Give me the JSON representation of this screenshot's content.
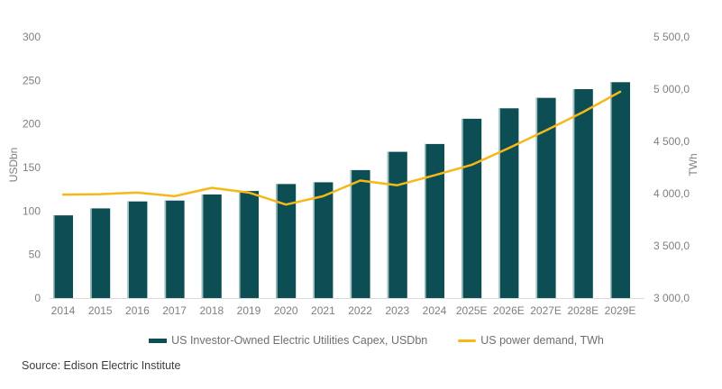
{
  "chart_data": {
    "type": "bar",
    "subtype": "bar-line-combo",
    "categories": [
      "2014",
      "2015",
      "2016",
      "2017",
      "2018",
      "2019",
      "2020",
      "2021",
      "2022",
      "2023",
      "2024",
      "2025E",
      "2026E",
      "2027E",
      "2028E",
      "2029E"
    ],
    "series": [
      {
        "name": "US Investor-Owned Electric Utilities Capex, USDbn",
        "type": "bar",
        "axis": "left",
        "values": [
          95,
          103,
          111,
          112,
          119,
          123,
          131,
          133,
          147,
          168,
          177,
          206,
          218,
          230,
          240,
          248
        ]
      },
      {
        "name": "US power demand, TWh",
        "type": "line",
        "axis": "right",
        "values": [
          3990,
          3995,
          4010,
          3975,
          4055,
          4010,
          3895,
          3975,
          4125,
          4080,
          4175,
          4275,
          4435,
          4605,
          4780,
          4975
        ]
      }
    ],
    "left_axis": {
      "label": "USDbn",
      "min": 0,
      "max": 300,
      "ticks": [
        "0",
        "50",
        "100",
        "150",
        "200",
        "250",
        "300"
      ],
      "tick_values": [
        0,
        50,
        100,
        150,
        200,
        250,
        300
      ]
    },
    "right_axis": {
      "label": "TWh",
      "min": 3000,
      "max": 5500,
      "ticks": [
        "3 000,0",
        "3 500,0",
        "4 000,0",
        "4 500,0",
        "5 000,0",
        "5 500,0"
      ],
      "tick_values": [
        3000,
        3500,
        4000,
        4500,
        5000,
        5500
      ]
    },
    "grid": false,
    "legend_position": "bottom",
    "title": ""
  },
  "legend": {
    "bar_label": "US Investor-Owned Electric Utilities Capex, USDbn",
    "line_label": "US power demand, TWh"
  },
  "source": {
    "text": "Source: Edison Electric Institute"
  },
  "colors": {
    "bar": "#0d4e54",
    "bar_edge": "#9dc0c3",
    "line": "#f6b719",
    "axis_text": "#7f7f7f",
    "legend_text": "#6f6f6f",
    "source_text": "#3d3d3d",
    "baseline": "#d9d9d9",
    "background": "#ffffff"
  }
}
